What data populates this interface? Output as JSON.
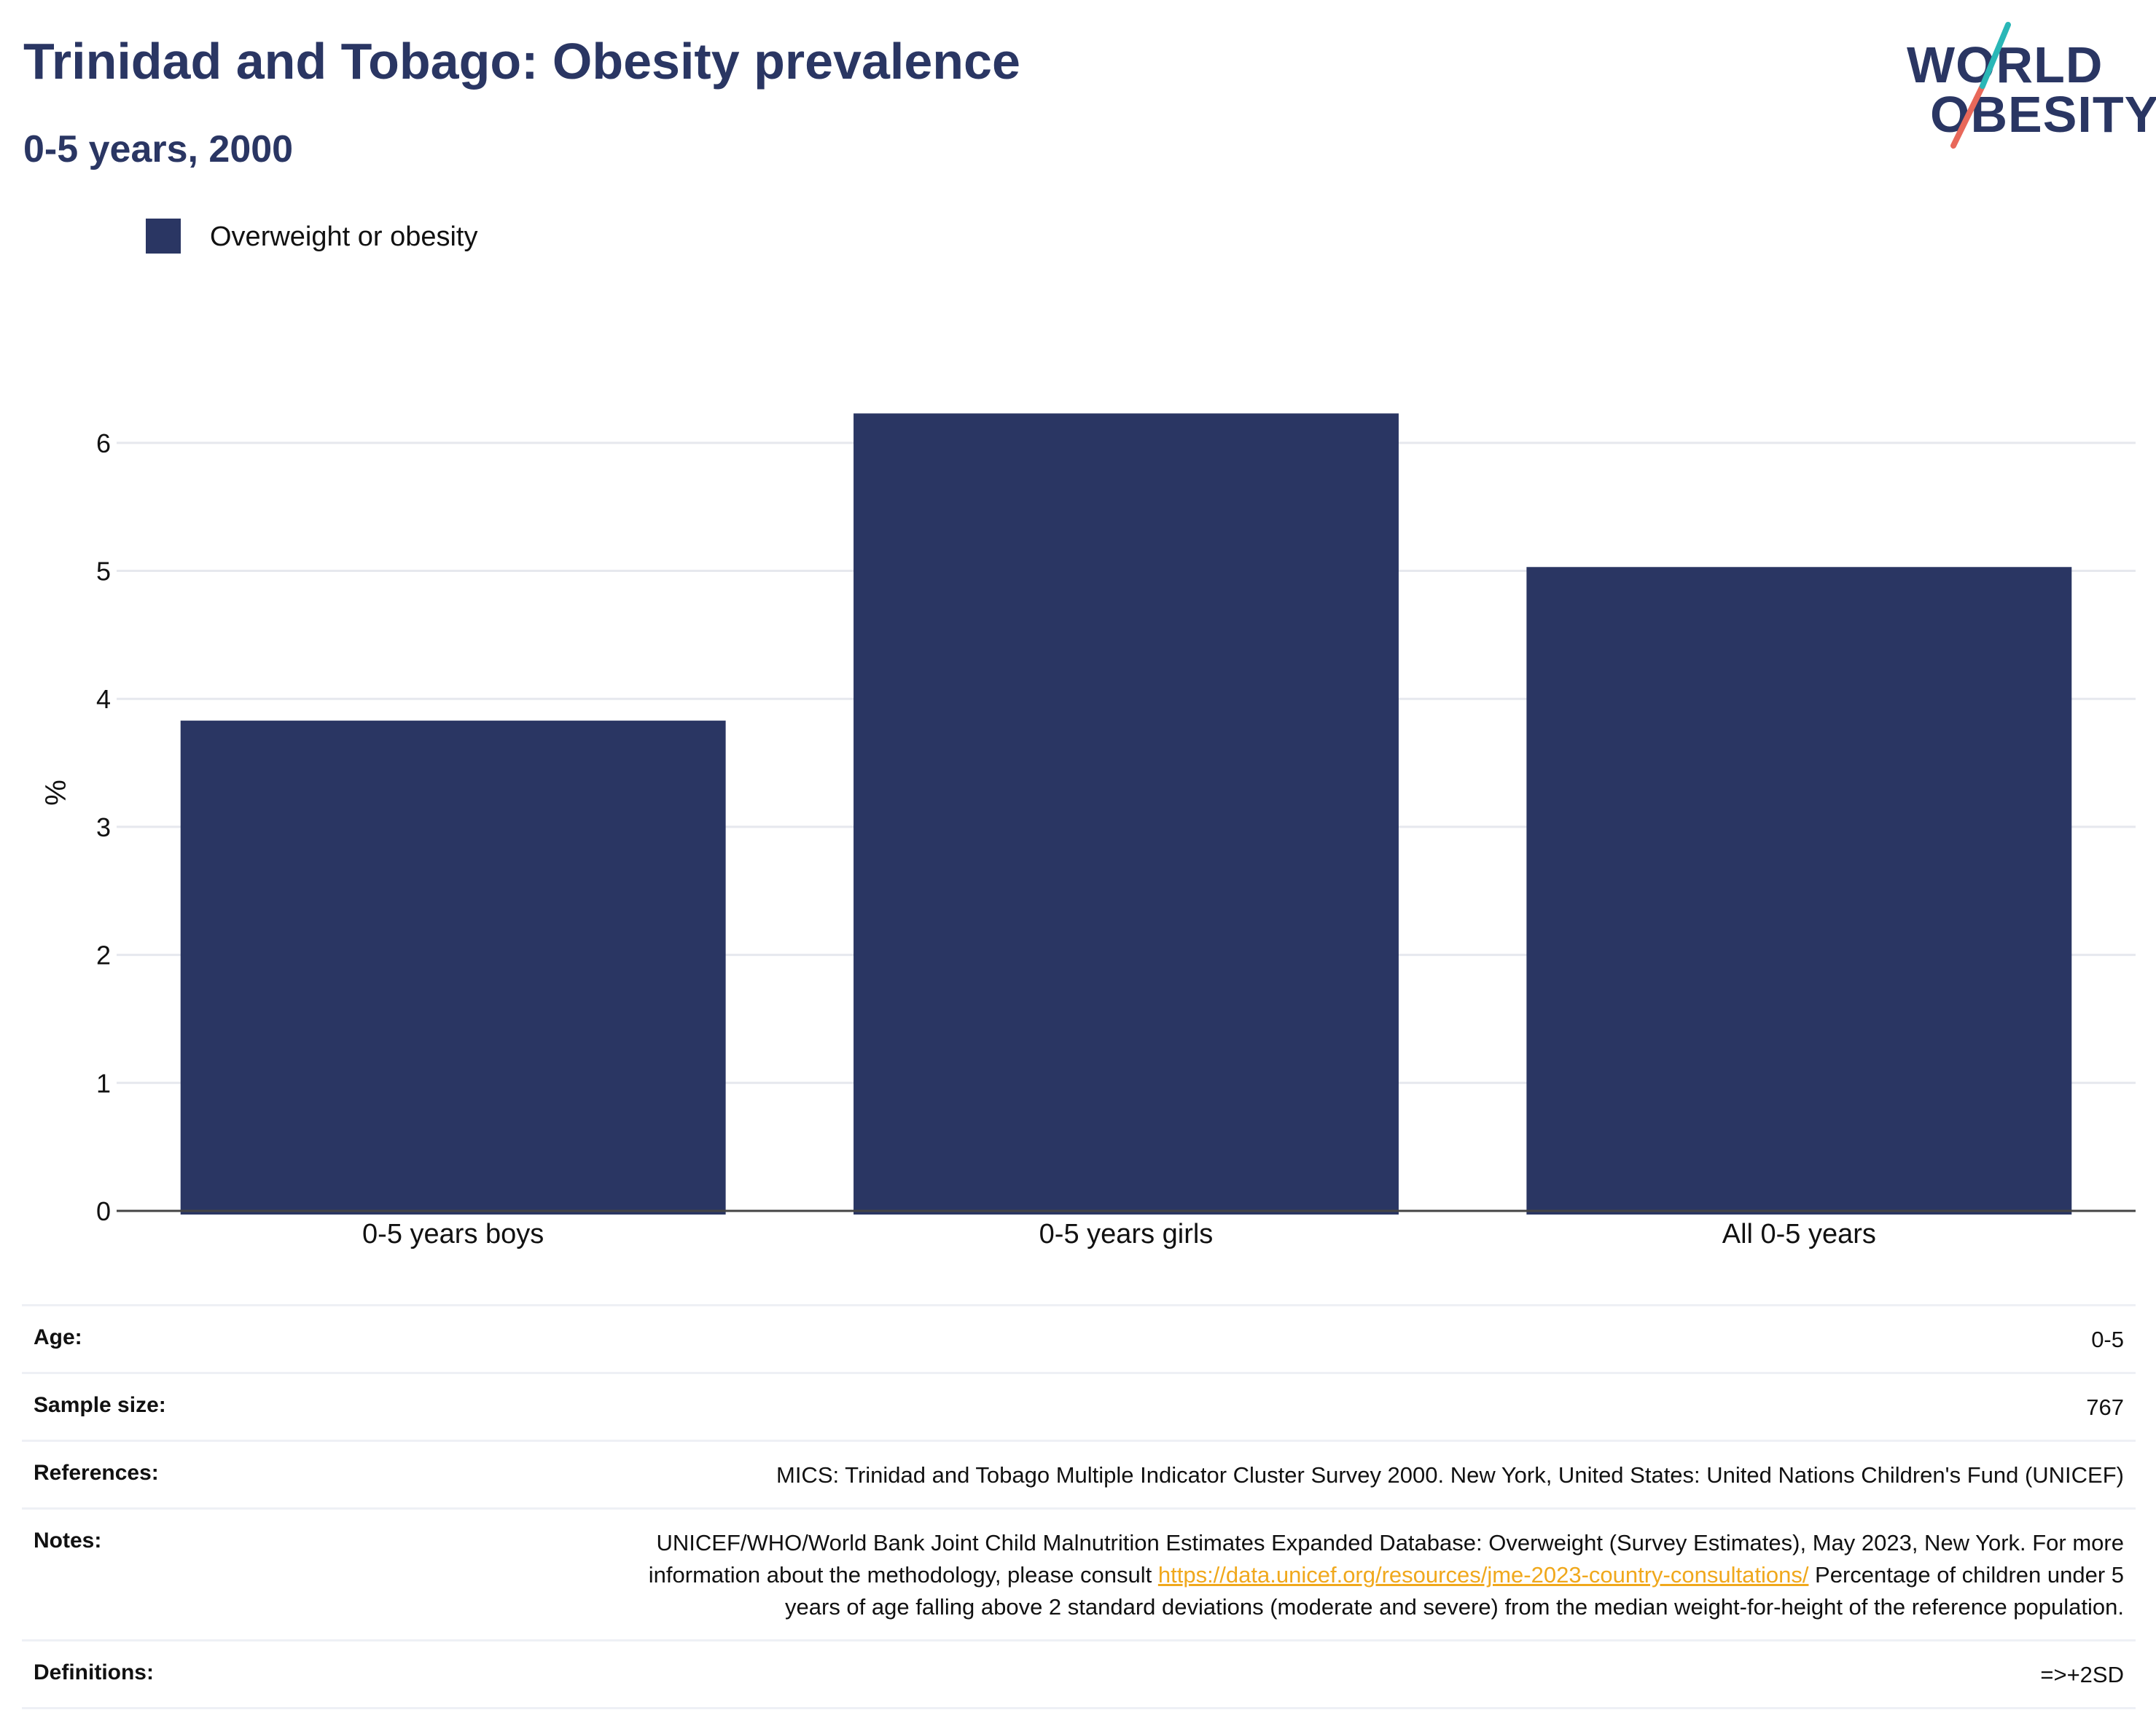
{
  "header": {
    "title": "Trinidad and Tobago: Obesity prevalence",
    "subtitle": "0-5 years, 2000"
  },
  "logo": {
    "line1": "WORLD",
    "line2": "OBESITY",
    "colors": {
      "text": "#2a3663",
      "slash_top": "#2ab7b7",
      "slash_bottom": "#e8685a"
    }
  },
  "chart_data": {
    "type": "bar",
    "categories": [
      "0-5 years boys",
      "0-5 years girls",
      "All 0-5 years"
    ],
    "series": [
      {
        "name": "Overweight or obesity",
        "values": [
          3.83,
          6.23,
          5.03
        ],
        "color": "#2a3663"
      }
    ],
    "ylabel": "%",
    "ylim": [
      0,
      6.5
    ],
    "yticks": [
      0,
      1,
      2,
      3,
      4,
      5,
      6
    ],
    "grid": true,
    "legend_position": "top-left"
  },
  "metadata": [
    {
      "label": "Age:",
      "value": "0-5"
    },
    {
      "label": "Sample size:",
      "value": "767"
    },
    {
      "label": "References:",
      "value": "MICS: Trinidad and Tobago Multiple Indicator Cluster Survey 2000. New York, United States: United Nations Children's Fund (UNICEF)"
    },
    {
      "label": "Notes:",
      "value_before": "UNICEF/WHO/World Bank Joint Child Malnutrition Estimates Expanded Database: Overweight (Survey Estimates), May 2023, New York. For more information about the methodology, please consult ",
      "link": "https://data.unicef.org/resources/jme-2023-country-consultations/",
      "value_after": " Percentage of children under 5 years of age falling above 2 standard deviations (moderate and severe) from the median weight-for-height of the reference population."
    },
    {
      "label": "Definitions:",
      "value": "=>+2SD"
    }
  ]
}
